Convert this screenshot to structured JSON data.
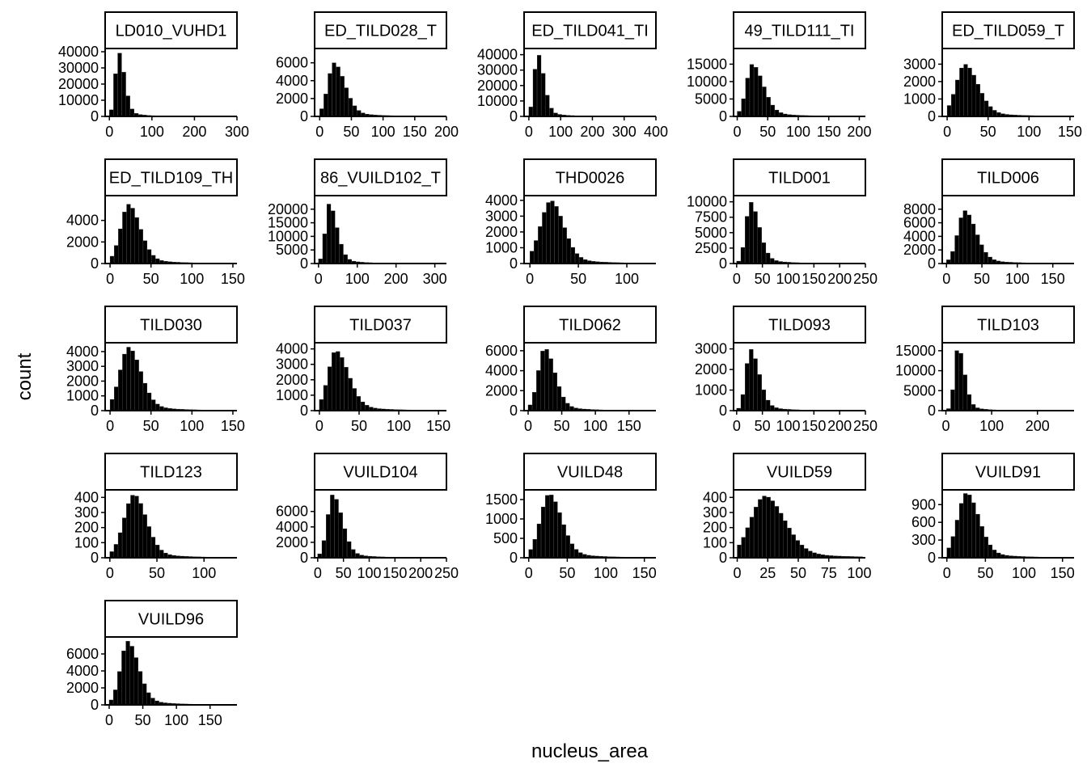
{
  "chart_data": {
    "type": "bar",
    "xlabel": "nucleus_area",
    "ylabel": "count",
    "panels": [
      {
        "title": "LD010_VUHD1",
        "x_ticks": [
          0,
          100,
          200,
          300
        ],
        "x_tick_labels": [
          "0",
          "100",
          "200",
          "300"
        ],
        "xlim": [
          -10,
          300
        ],
        "y_ticks": [
          0,
          10000,
          20000,
          30000,
          40000
        ],
        "y_tick_labels": [
          "0",
          "10000",
          "20000",
          "30000",
          "40000"
        ],
        "ylim": [
          0,
          42000
        ],
        "peak": 40000,
        "mode": 22,
        "sd_left": 8,
        "sd_right": 14
      },
      {
        "title": "ED_TILD028_T",
        "x_ticks": [
          0,
          50,
          100,
          150,
          200
        ],
        "x_tick_labels": [
          "0",
          "50",
          "100",
          "150",
          "200"
        ],
        "xlim": [
          -8,
          200
        ],
        "y_ticks": [
          0,
          2000,
          4000,
          6000
        ],
        "y_tick_labels": [
          "0",
          "2000",
          "4000",
          "6000"
        ],
        "ylim": [
          0,
          7600
        ],
        "peak": 6000,
        "mode": 23,
        "sd_left": 10,
        "sd_right": 17
      },
      {
        "title": "ED_TILD041_TI",
        "x_ticks": [
          0,
          100,
          200,
          300,
          400
        ],
        "x_tick_labels": [
          "0",
          "100",
          "200",
          "300",
          "400"
        ],
        "xlim": [
          -15,
          400
        ],
        "y_ticks": [
          0,
          10000,
          20000,
          30000,
          40000
        ],
        "y_tick_labels": [
          "0",
          "10000",
          "20000",
          "30000",
          "40000"
        ],
        "ylim": [
          0,
          44000
        ],
        "peak": 41000,
        "mode": 28,
        "sd_left": 11,
        "sd_right": 20
      },
      {
        "title": "49_TILD111_TI",
        "x_ticks": [
          0,
          50,
          100,
          150,
          200
        ],
        "x_tick_labels": [
          "0",
          "50",
          "100",
          "150",
          "200"
        ],
        "xlim": [
          -6,
          210
        ],
        "y_ticks": [
          0,
          5000,
          10000,
          15000
        ],
        "y_tick_labels": [
          "0",
          "5000",
          "10000",
          "15000"
        ],
        "ylim": [
          0,
          19500
        ],
        "peak": 15000,
        "mode": 25,
        "sd_left": 10,
        "sd_right": 18
      },
      {
        "title": "ED_TILD059_T",
        "x_ticks": [
          0,
          50,
          100,
          150
        ],
        "x_tick_labels": [
          "0",
          "50",
          "100",
          "150"
        ],
        "xlim": [
          -6,
          155
        ],
        "y_ticks": [
          0,
          1000,
          2000,
          3000
        ],
        "y_tick_labels": [
          "0",
          "1000",
          "2000",
          "3000"
        ],
        "ylim": [
          0,
          3900
        ],
        "peak": 3000,
        "mode": 22,
        "sd_left": 11,
        "sd_right": 16
      },
      {
        "title": "ED_TILD109_TH",
        "x_ticks": [
          0,
          50,
          100,
          150
        ],
        "x_tick_labels": [
          "0",
          "50",
          "100",
          "150"
        ],
        "xlim": [
          -6,
          155
        ],
        "y_ticks": [
          0,
          2000,
          4000
        ],
        "y_tick_labels": [
          "0",
          "2000",
          "4000"
        ],
        "ylim": [
          0,
          6300
        ],
        "peak": 5500,
        "mode": 23,
        "sd_left": 10,
        "sd_right": 14
      },
      {
        "title": "86_VUILD102_T",
        "x_ticks": [
          0,
          100,
          200,
          300
        ],
        "x_tick_labels": [
          "0",
          "100",
          "200",
          "300"
        ],
        "xlim": [
          -10,
          330
        ],
        "y_ticks": [
          0,
          5000,
          10000,
          15000,
          20000
        ],
        "y_tick_labels": [
          "0",
          "5000",
          "10000",
          "15000",
          "20000"
        ],
        "ylim": [
          0,
          25000
        ],
        "peak": 22000,
        "mode": 28,
        "sd_left": 10,
        "sd_right": 20
      },
      {
        "title": "THD0026",
        "x_ticks": [
          0,
          50,
          100
        ],
        "x_tick_labels": [
          "0",
          "50",
          "100"
        ],
        "xlim": [
          -6,
          130
        ],
        "y_ticks": [
          0,
          1000,
          2000,
          3000,
          4000
        ],
        "y_tick_labels": [
          "0",
          "1000",
          "2000",
          "3000",
          "4000"
        ],
        "ylim": [
          0,
          4300
        ],
        "peak": 4000,
        "mode": 22,
        "sd_left": 11,
        "sd_right": 13
      },
      {
        "title": "TILD001",
        "x_ticks": [
          0,
          50,
          100,
          150,
          200,
          250
        ],
        "x_tick_labels": [
          "0",
          "50",
          "100",
          "150",
          "200",
          "250"
        ],
        "xlim": [
          -6,
          250
        ],
        "y_ticks": [
          0,
          2500,
          5000,
          7500,
          10000
        ],
        "y_tick_labels": [
          "0",
          "2500",
          "5000",
          "7500",
          "10000"
        ],
        "ylim": [
          0,
          11000
        ],
        "peak": 10000,
        "mode": 27,
        "sd_left": 9,
        "sd_right": 17
      },
      {
        "title": "TILD006",
        "x_ticks": [
          0,
          50,
          100,
          150
        ],
        "x_tick_labels": [
          "0",
          "50",
          "100",
          "150"
        ],
        "xlim": [
          -6,
          180
        ],
        "y_ticks": [
          0,
          2000,
          4000,
          6000,
          8000
        ],
        "y_tick_labels": [
          "0",
          "2000",
          "4000",
          "6000",
          "8000"
        ],
        "ylim": [
          0,
          10000
        ],
        "peak": 7800,
        "mode": 26,
        "sd_left": 10,
        "sd_right": 16
      },
      {
        "title": "TILD030",
        "x_ticks": [
          0,
          50,
          100,
          150
        ],
        "x_tick_labels": [
          "0",
          "50",
          "100",
          "150"
        ],
        "xlim": [
          -6,
          155
        ],
        "y_ticks": [
          0,
          1000,
          2000,
          3000,
          4000
        ],
        "y_tick_labels": [
          "0",
          "1000",
          "2000",
          "3000",
          "4000"
        ],
        "ylim": [
          0,
          4600
        ],
        "peak": 4300,
        "mode": 23,
        "sd_left": 11,
        "sd_right": 15
      },
      {
        "title": "TILD037",
        "x_ticks": [
          0,
          50,
          100,
          150
        ],
        "x_tick_labels": [
          "0",
          "50",
          "100",
          "150"
        ],
        "xlim": [
          -6,
          160
        ],
        "y_ticks": [
          0,
          1000,
          2000,
          3000,
          4000
        ],
        "y_tick_labels": [
          "0",
          "1000",
          "2000",
          "3000",
          "4000"
        ],
        "ylim": [
          0,
          4400
        ],
        "peak": 3900,
        "mode": 21,
        "sd_left": 10,
        "sd_right": 16
      },
      {
        "title": "TILD062",
        "x_ticks": [
          0,
          50,
          100,
          150
        ],
        "x_tick_labels": [
          "0",
          "50",
          "100",
          "150"
        ],
        "xlim": [
          -6,
          190
        ],
        "y_ticks": [
          0,
          2000,
          4000,
          6000
        ],
        "y_tick_labels": [
          "0",
          "2000",
          "4000",
          "6000"
        ],
        "ylim": [
          0,
          6800
        ],
        "peak": 6300,
        "mode": 25,
        "sd_left": 10,
        "sd_right": 15
      },
      {
        "title": "TILD093",
        "x_ticks": [
          0,
          50,
          100,
          150,
          200,
          250
        ],
        "x_tick_labels": [
          "0",
          "50",
          "100",
          "150",
          "200",
          "250"
        ],
        "xlim": [
          -6,
          250
        ],
        "y_ticks": [
          0,
          1000,
          2000,
          3000
        ],
        "y_tick_labels": [
          "0",
          "1000",
          "2000",
          "3000"
        ],
        "ylim": [
          0,
          3300
        ],
        "peak": 3000,
        "mode": 27,
        "sd_left": 9,
        "sd_right": 17
      },
      {
        "title": "TILD103",
        "x_ticks": [
          0,
          100,
          200
        ],
        "x_tick_labels": [
          "0",
          "100",
          "200"
        ],
        "xlim": [
          -8,
          280
        ],
        "y_ticks": [
          0,
          5000,
          10000,
          15000
        ],
        "y_tick_labels": [
          "0",
          "5000",
          "10000",
          "15000"
        ],
        "ylim": [
          0,
          17000
        ],
        "peak": 16000,
        "mode": 27,
        "sd_left": 8,
        "sd_right": 14
      },
      {
        "title": "TILD123",
        "x_ticks": [
          0,
          50,
          100
        ],
        "x_tick_labels": [
          "0",
          "50",
          "100"
        ],
        "xlim": [
          -5,
          135
        ],
        "y_ticks": [
          0,
          100,
          200,
          300,
          400
        ],
        "y_tick_labels": [
          "0",
          "100",
          "200",
          "300",
          "400"
        ],
        "ylim": [
          0,
          450
        ],
        "peak": 420,
        "mode": 26,
        "sd_left": 11,
        "sd_right": 13
      },
      {
        "title": "VUILD104",
        "x_ticks": [
          0,
          50,
          100,
          150,
          200,
          250
        ],
        "x_tick_labels": [
          "0",
          "50",
          "100",
          "150",
          "200",
          "250"
        ],
        "xlim": [
          -6,
          250
        ],
        "y_ticks": [
          0,
          2000,
          4000,
          6000
        ],
        "y_tick_labels": [
          "0",
          "2000",
          "4000",
          "6000"
        ],
        "ylim": [
          0,
          8800
        ],
        "peak": 8200,
        "mode": 30,
        "sd_left": 11,
        "sd_right": 18
      },
      {
        "title": "VUILD48",
        "x_ticks": [
          0,
          50,
          100,
          150
        ],
        "x_tick_labels": [
          "0",
          "50",
          "100",
          "150"
        ],
        "xlim": [
          -6,
          165
        ],
        "y_ticks": [
          0,
          500,
          1000,
          1500
        ],
        "y_tick_labels": [
          "0",
          "500",
          "1000",
          "1500"
        ],
        "ylim": [
          0,
          1750
        ],
        "peak": 1650,
        "mode": 27,
        "sd_left": 12,
        "sd_right": 16
      },
      {
        "title": "VUILD59",
        "x_ticks": [
          0,
          25,
          50,
          75,
          100
        ],
        "x_tick_labels": [
          "0",
          "25",
          "50",
          "75",
          "100"
        ],
        "xlim": [
          -3,
          105
        ],
        "y_ticks": [
          0,
          100,
          200,
          300,
          400
        ],
        "y_tick_labels": [
          "0",
          "100",
          "200",
          "300",
          "400"
        ],
        "ylim": [
          0,
          450
        ],
        "peak": 410,
        "mode": 23,
        "sd_left": 12,
        "sd_right": 16
      },
      {
        "title": "VUILD91",
        "x_ticks": [
          0,
          50,
          100,
          150
        ],
        "x_tick_labels": [
          "0",
          "50",
          "100",
          "150"
        ],
        "xlim": [
          -6,
          165
        ],
        "y_ticks": [
          0,
          300,
          600,
          900
        ],
        "y_tick_labels": [
          "0",
          "300",
          "600",
          "900"
        ],
        "ylim": [
          0,
          1150
        ],
        "peak": 1100,
        "mode": 26,
        "sd_left": 12,
        "sd_right": 16
      },
      {
        "title": "VUILD96",
        "x_ticks": [
          0,
          50,
          100,
          150
        ],
        "x_tick_labels": [
          "0",
          "50",
          "100",
          "150"
        ],
        "xlim": [
          -6,
          190
        ],
        "y_ticks": [
          0,
          2000,
          4000,
          6000
        ],
        "y_tick_labels": [
          "0",
          "2000",
          "4000",
          "6000"
        ],
        "ylim": [
          0,
          8000
        ],
        "peak": 7500,
        "mode": 28,
        "sd_left": 11,
        "sd_right": 16
      }
    ]
  }
}
